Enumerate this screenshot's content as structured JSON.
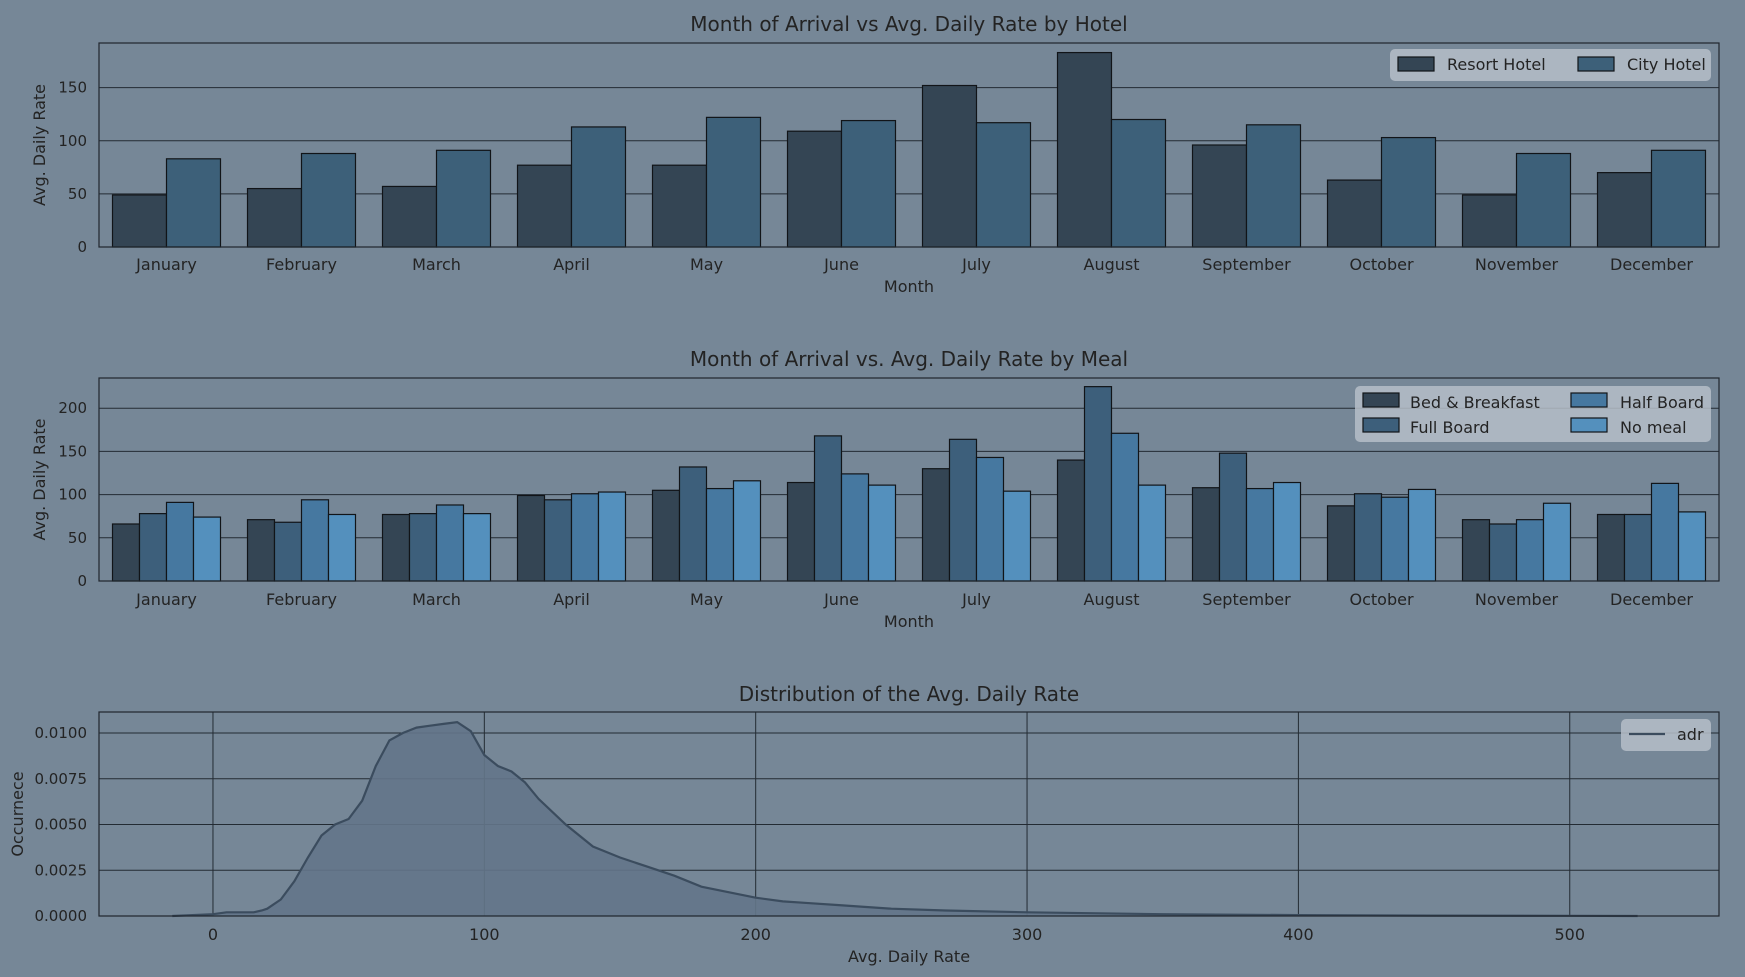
{
  "colors": {
    "background": "#768797",
    "grid": "#232b33",
    "text": "#232323",
    "legend_bg": "#b6bec8",
    "resort": "#344554",
    "city": "#3d6079",
    "bed_breakfast": "#344554",
    "full_board": "#3d5f7b",
    "half_board": "#4678a0",
    "no_meal": "#5490bd",
    "kde_fill": "#647689",
    "kde_line": "#3b4c5e"
  },
  "chart_data": [
    {
      "type": "bar",
      "title": "Month of Arrival vs Avg. Daily Rate by Hotel",
      "xlabel": "Month",
      "ylabel": "Avg. Daily Rate",
      "categories": [
        "January",
        "February",
        "March",
        "April",
        "May",
        "June",
        "July",
        "August",
        "September",
        "October",
        "November",
        "December"
      ],
      "series": [
        {
          "name": "Resort Hotel",
          "values": [
            49,
            55,
            57,
            77,
            77,
            109,
            152,
            183,
            96,
            63,
            49,
            70
          ]
        },
        {
          "name": "City Hotel",
          "values": [
            83,
            88,
            91,
            113,
            122,
            119,
            117,
            120,
            115,
            103,
            88,
            91
          ]
        }
      ],
      "ylim": [
        0,
        192
      ],
      "yticks": [
        0,
        50,
        100,
        150
      ],
      "grid": "horizontal",
      "legend": {
        "placement": "top-right",
        "ncol": 2
      }
    },
    {
      "type": "bar",
      "title": "Month of Arrival vs. Avg. Daily Rate by Meal",
      "xlabel": "Month",
      "ylabel": "Avg. Daily Rate",
      "categories": [
        "January",
        "February",
        "March",
        "April",
        "May",
        "June",
        "July",
        "August",
        "September",
        "October",
        "November",
        "December"
      ],
      "series": [
        {
          "name": "Bed & Breakfast",
          "values": [
            66,
            71,
            77,
            99,
            105,
            114,
            130,
            140,
            108,
            87,
            71,
            77
          ]
        },
        {
          "name": "Full Board",
          "values": [
            78,
            68,
            78,
            94,
            132,
            168,
            164,
            225,
            148,
            101,
            66,
            77
          ]
        },
        {
          "name": "Half Board",
          "values": [
            91,
            94,
            88,
            101,
            107,
            124,
            143,
            171,
            107,
            97,
            71,
            113
          ]
        },
        {
          "name": "No meal",
          "values": [
            74,
            77,
            78,
            103,
            116,
            111,
            104,
            111,
            114,
            106,
            90,
            80
          ]
        }
      ],
      "ylim": [
        0,
        235
      ],
      "yticks": [
        0,
        50,
        100,
        150,
        200
      ],
      "grid": "horizontal",
      "legend": {
        "placement": "top-right",
        "ncol": 2
      }
    },
    {
      "type": "area",
      "title": "Distribution of the Avg. Daily Rate",
      "xlabel": "Avg. Daily Rate",
      "ylabel": "Occurnece",
      "series": [
        {
          "name": "adr",
          "x": [
            -15,
            0,
            5,
            15,
            18,
            20,
            25,
            30,
            35,
            40,
            45,
            50,
            55,
            60,
            65,
            70,
            75,
            80,
            85,
            90,
            95,
            100,
            105,
            110,
            115,
            120,
            130,
            140,
            150,
            160,
            170,
            180,
            190,
            200,
            210,
            220,
            230,
            250,
            270,
            300,
            350,
            400,
            450,
            500,
            525
          ],
          "y": [
            0.0,
            0.0001,
            0.0002,
            0.0002,
            0.0003,
            0.0004,
            0.0009,
            0.0019,
            0.0032,
            0.0044,
            0.005,
            0.0053,
            0.0063,
            0.0082,
            0.0096,
            0.01,
            0.0103,
            0.0104,
            0.0105,
            0.0106,
            0.0101,
            0.0088,
            0.0082,
            0.0079,
            0.0073,
            0.0064,
            0.005,
            0.0038,
            0.0032,
            0.0027,
            0.0022,
            0.0016,
            0.0013,
            0.001,
            0.0008,
            0.0007,
            0.0006,
            0.0004,
            0.0003,
            0.0002,
            0.0001,
            5e-05,
            2e-05,
            1e-05,
            0.0
          ]
        }
      ],
      "xlim": [
        -42,
        555
      ],
      "ylim": [
        0,
        0.01115
      ],
      "xticks": [
        0,
        100,
        200,
        300,
        400,
        500
      ],
      "yticks": [
        0.0,
        0.0025,
        0.005,
        0.0075,
        0.01
      ],
      "ytick_labels": [
        "0.0000",
        "0.0025",
        "0.0050",
        "0.0075",
        "0.0100"
      ],
      "grid": "both",
      "legend": {
        "placement": "top-right",
        "ncol": 1
      }
    }
  ]
}
